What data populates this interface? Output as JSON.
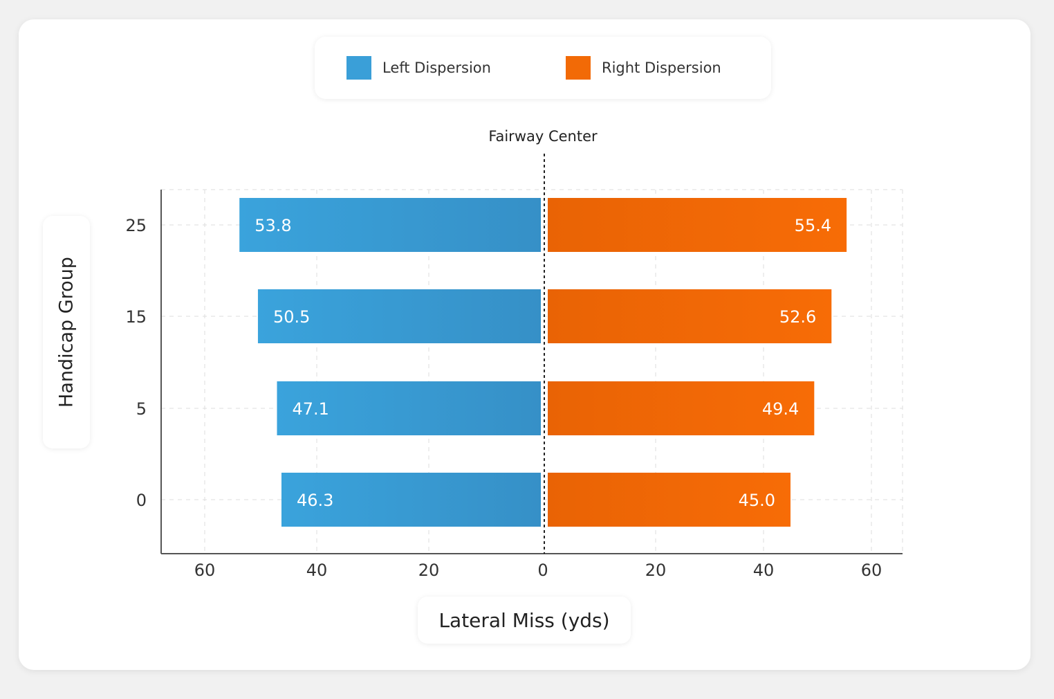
{
  "chart_data": {
    "type": "bar",
    "orientation": "horizontal-diverging",
    "title": "",
    "annotation": "Fairway Center",
    "xlabel": "Lateral Miss (yds)",
    "ylabel": "Handicap Group",
    "categories": [
      "25",
      "15",
      "5",
      "0"
    ],
    "series": [
      {
        "name": "Left Dispersion",
        "color": "#3a9fd8",
        "values": [
          53.8,
          50.5,
          47.1,
          46.3
        ],
        "labels": [
          "53.8",
          "50.5",
          "47.1",
          "46.3"
        ]
      },
      {
        "name": "Right Dispersion",
        "color": "#f26a06",
        "values": [
          55.4,
          52.6,
          49.4,
          45.0
        ],
        "labels": [
          "55.4",
          "52.6",
          "49.4",
          "45.0"
        ]
      }
    ],
    "xticks_left": [
      "60",
      "40",
      "20"
    ],
    "xticks_center": "0",
    "xticks_right": [
      "20",
      "40",
      "60"
    ],
    "xlim": [
      -60,
      60
    ],
    "grid": true,
    "legend_position": "top-center"
  }
}
